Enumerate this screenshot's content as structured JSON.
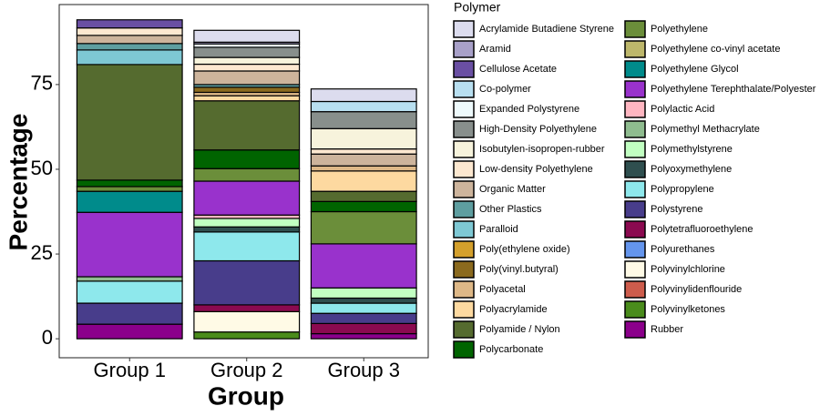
{
  "chart_data": {
    "type": "stacked_bar",
    "x_label": "Group",
    "y_label": "Percentage",
    "legend_title": "Polymer",
    "categories": [
      "Group 1",
      "Group 2",
      "Group 3"
    ],
    "ylim": [
      -5.6,
      98.6
    ],
    "yticks": [
      0,
      25,
      50,
      75
    ],
    "grid": false,
    "legend": "right",
    "series": [
      {
        "name": "Acrylamide Butadiene Styrene",
        "color": "#dcdcee",
        "values": [
          null,
          3.5,
          3.7
        ]
      },
      {
        "name": "Aramid",
        "color": "#a8a0c8",
        "values": [
          null,
          0.5,
          null
        ]
      },
      {
        "name": "Cellulose Acetate",
        "color": "#6a4fa3",
        "values": [
          2.4,
          null,
          null
        ]
      },
      {
        "name": "Co-polymer",
        "color": "#b8dff0",
        "values": [
          null,
          null,
          3
        ]
      },
      {
        "name": "Expanded Polystyrene",
        "color": "#eefafc",
        "values": [
          null,
          1,
          null
        ]
      },
      {
        "name": "High-Density Polyethylene",
        "color": "#888f8c",
        "values": [
          null,
          3,
          5
        ]
      },
      {
        "name": "Isobutylen-isopropen-rubber",
        "color": "#f7f3dc",
        "values": [
          null,
          2,
          6
        ]
      },
      {
        "name": "Low-density Polyethylene",
        "color": "#fde8d0",
        "values": [
          2.2,
          2,
          1.5
        ]
      },
      {
        "name": "Organic Matter",
        "color": "#cdb49c",
        "values": [
          2.4,
          4,
          3.5
        ]
      },
      {
        "name": "Other Plastics",
        "color": "#5e9ea0",
        "values": [
          1.9,
          0.8,
          null
        ]
      },
      {
        "name": "Paralloid",
        "color": "#7ec8d4",
        "values": [
          4.3,
          null,
          null
        ]
      },
      {
        "name": "Poly(ethylene oxide)",
        "color": "#d4a02c",
        "values": [
          null,
          null,
          null
        ]
      },
      {
        "name": "Poly(vinyl.butyral)",
        "color": "#8b6a1e",
        "values": [
          null,
          1.5,
          null
        ]
      },
      {
        "name": "Polyacetal",
        "color": "#deb887",
        "values": [
          null,
          1,
          1.5
        ]
      },
      {
        "name": "Polyacrylamide",
        "color": "#fdd9a0",
        "values": [
          null,
          1.5,
          6
        ]
      },
      {
        "name": "Polyamide / Nylon",
        "color": "#556b2f",
        "values": [
          34.1,
          14.5,
          3
        ]
      },
      {
        "name": "Polycarbonate",
        "color": "#006400",
        "values": [
          1.9,
          5.5,
          3
        ]
      },
      {
        "name": "Polyethylene",
        "color": "#6b8e3a",
        "values": [
          1.4,
          3.7,
          9.5
        ]
      },
      {
        "name": "Polyethylene co-vinyl acetate",
        "color": "#bdb76b",
        "values": [
          null,
          null,
          null
        ]
      },
      {
        "name": "Polyethylene Glycol",
        "color": "#008b8b",
        "values": [
          6.2,
          null,
          null
        ]
      },
      {
        "name": "Polyethylene Terephthalate/Polyester",
        "color": "#9932cc",
        "values": [
          19,
          10,
          13
        ]
      },
      {
        "name": "Polylactic Acid",
        "color": "#ffb6c1",
        "values": [
          null,
          1,
          null
        ]
      },
      {
        "name": "Polymethyl Methacrylate",
        "color": "#8fbc8f",
        "values": [
          1.3,
          null,
          null
        ]
      },
      {
        "name": "Polymethylstyrene",
        "color": "#c1ffc1",
        "values": [
          null,
          2.5,
          3
        ]
      },
      {
        "name": "Polyoxymethylene",
        "color": "#2f4f4f",
        "values": [
          null,
          1.5,
          1.5
        ]
      },
      {
        "name": "Polypropylene",
        "color": "#8ee8ec",
        "values": [
          6.5,
          8.5,
          3
        ]
      },
      {
        "name": "Polystyrene",
        "color": "#483d8b",
        "values": [
          6.2,
          13,
          3
        ]
      },
      {
        "name": "Polytetrafluoroethylene",
        "color": "#8b0a50",
        "values": [
          null,
          2,
          3
        ]
      },
      {
        "name": "Polyurethanes",
        "color": "#6495ed",
        "values": [
          null,
          null,
          null
        ]
      },
      {
        "name": "Polyvinylchlorine",
        "color": "#fffae6",
        "values": [
          null,
          6,
          null
        ]
      },
      {
        "name": "Polyvinylidenflouride",
        "color": "#cd5c4c",
        "values": [
          null,
          null,
          null
        ]
      },
      {
        "name": "Polyvinylketones",
        "color": "#4a8c1c",
        "values": [
          null,
          2,
          null
        ]
      },
      {
        "name": "Rubber",
        "color": "#8b008b",
        "values": [
          4.3,
          null,
          1.5
        ]
      }
    ]
  }
}
